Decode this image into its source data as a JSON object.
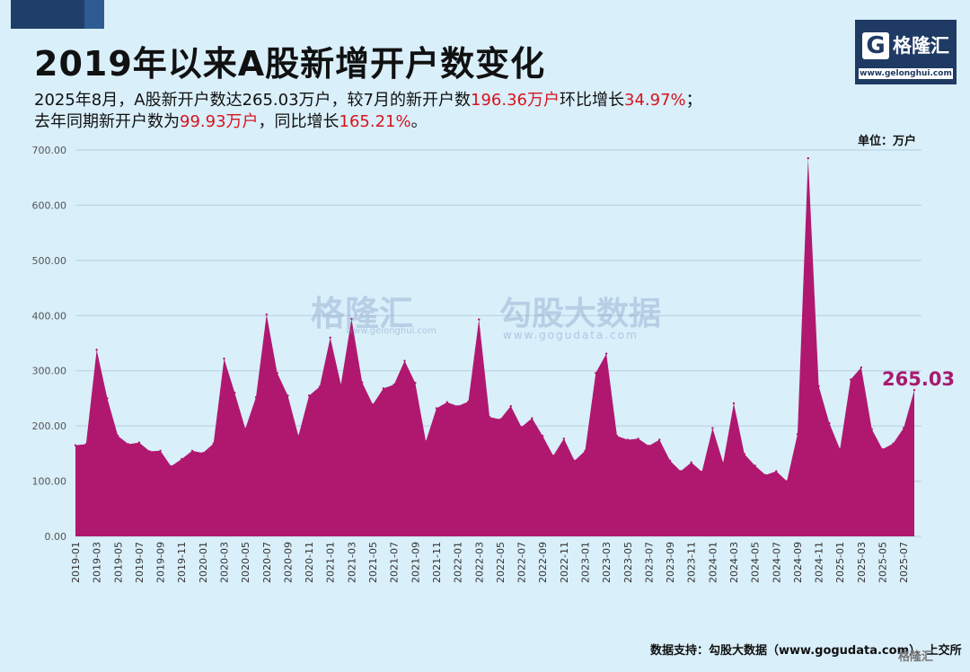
{
  "header": {
    "title": "2019年以来A股新增开户数变化",
    "summary_line1_a": "2025年8月，A股新开户数达265.03万户，较7月的新开户数",
    "summary_line1_b": "196.36万户",
    "summary_line1_c": "环比增长",
    "summary_line1_d": "34.97%",
    "summary_line1_e": "；",
    "summary_line2_a": "去年同期新开户数为",
    "summary_line2_b": "99.93万户",
    "summary_line2_c": "，同比增长",
    "summary_line2_d": "165.21%",
    "summary_line2_e": "。"
  },
  "logo": {
    "icon": "G",
    "name": "格隆汇",
    "url": "www.gelonghui.com"
  },
  "watermark": {
    "brand1": "格隆汇",
    "brand1_url": "www.gelonghui.com",
    "brand2": "勾股大数据",
    "brand2_url": "www.gogudata.com"
  },
  "unit_label": "单位：万户",
  "latest_label": "265.03",
  "source": "数据支持：勾股大数据（www.gogudata.com）、上交所",
  "footer_logo": "格隆汇",
  "colors": {
    "area": "#b0186f",
    "background": "#d9effa",
    "highlight": "#d8141e",
    "grid": "#b8cfdd"
  },
  "chart_data": {
    "type": "area",
    "xlabel": "",
    "ylabel": "",
    "ylim": [
      0,
      700
    ],
    "yticks": [
      "0.00",
      "100.00",
      "200.00",
      "300.00",
      "400.00",
      "500.00",
      "600.00",
      "700.00"
    ],
    "grid": true,
    "x": [
      "2019-01",
      "2019-02",
      "2019-03",
      "2019-04",
      "2019-05",
      "2019-06",
      "2019-07",
      "2019-08",
      "2019-09",
      "2019-10",
      "2019-11",
      "2019-12",
      "2020-01",
      "2020-02",
      "2020-03",
      "2020-04",
      "2020-05",
      "2020-06",
      "2020-07",
      "2020-08",
      "2020-09",
      "2020-10",
      "2020-11",
      "2020-12",
      "2021-01",
      "2021-02",
      "2021-03",
      "2021-04",
      "2021-05",
      "2021-06",
      "2021-07",
      "2021-08",
      "2021-09",
      "2021-10",
      "2021-11",
      "2021-12",
      "2022-01",
      "2022-02",
      "2022-03",
      "2022-04",
      "2022-05",
      "2022-06",
      "2022-07",
      "2022-08",
      "2022-09",
      "2022-10",
      "2022-11",
      "2022-12",
      "2023-01",
      "2023-02",
      "2023-03",
      "2023-04",
      "2023-05",
      "2023-06",
      "2023-07",
      "2023-08",
      "2023-09",
      "2023-10",
      "2023-11",
      "2023-12",
      "2024-01",
      "2024-02",
      "2024-03",
      "2024-04",
      "2024-05",
      "2024-06",
      "2024-07",
      "2024-08",
      "2024-09",
      "2024-10",
      "2024-11",
      "2024-12",
      "2025-01",
      "2025-02",
      "2025-03",
      "2025-04",
      "2025-05",
      "2025-06",
      "2025-07",
      "2025-08"
    ],
    "xtick_labels": [
      "2019-01",
      "2019-03",
      "2019-05",
      "2019-07",
      "2019-09",
      "2019-11",
      "2020-01",
      "2020-03",
      "2020-05",
      "2020-07",
      "2020-09",
      "2020-11",
      "2021-01",
      "2021-03",
      "2021-05",
      "2021-07",
      "2021-09",
      "2021-11",
      "2022-01",
      "2022-03",
      "2022-05",
      "2022-07",
      "2022-09",
      "2022-11",
      "2023-01",
      "2023-03",
      "2023-05",
      "2023-07",
      "2023-09",
      "2023-11",
      "2024-01",
      "2024-03",
      "2024-05",
      "2024-07",
      "2024-09",
      "2024-11",
      "2025-01",
      "2025-03",
      "2025-05",
      "2025-07"
    ],
    "values": [
      165,
      167,
      338,
      250,
      182,
      167,
      170,
      154,
      155,
      127,
      140,
      155,
      151,
      168,
      322,
      260,
      195,
      252,
      402,
      296,
      255,
      182,
      255,
      271,
      360,
      275,
      394,
      279,
      239,
      268,
      275,
      318,
      278,
      172,
      232,
      243,
      236,
      244,
      393,
      216,
      212,
      236,
      198,
      214,
      182,
      146,
      177,
      137,
      155,
      296,
      331,
      182,
      175,
      177,
      164,
      175,
      137,
      118,
      134,
      117,
      196,
      133,
      241,
      149,
      128,
      111,
      118,
      99.93,
      185,
      685,
      272,
      205,
      158,
      284,
      306,
      194,
      158,
      168,
      196.36,
      265.03
    ]
  }
}
